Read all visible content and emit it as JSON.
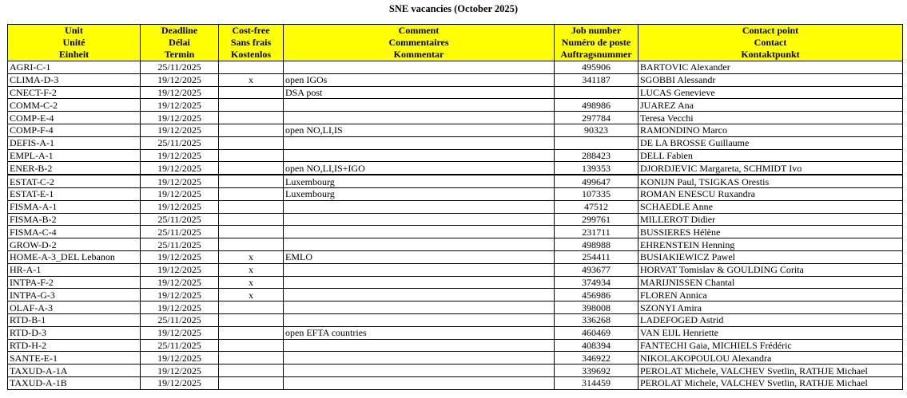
{
  "title": "SNE vacancies (October 2025)",
  "columns": [
    {
      "lines": [
        "Unit",
        "Unité",
        "Einheit"
      ]
    },
    {
      "lines": [
        "Deadline",
        "Délai",
        "Termin"
      ]
    },
    {
      "lines": [
        "Cost-free",
        "Sans frais",
        "Kostenlos"
      ]
    },
    {
      "lines": [
        "Comment",
        "Commentaires",
        "Kommentar"
      ]
    },
    {
      "lines": [
        "Job number",
        "Numéro de poste",
        "Auftragsnummer"
      ]
    },
    {
      "lines": [
        "Contact point",
        "Contact",
        "Kontaktpunkt"
      ]
    }
  ],
  "header_color": "#ffff00",
  "rows": [
    {
      "unit": "AGRI-C-1",
      "deadline": "25/11/2025",
      "cost_free": "",
      "comment": "",
      "job_number": "495906",
      "contact": "BARTOVIC Alexander"
    },
    {
      "unit": "CLIMA-D-3",
      "deadline": "19/12/2025",
      "cost_free": "x",
      "comment": "open IGOs",
      "job_number": "341187",
      "contact": "SGOBBI Alessandr"
    },
    {
      "unit": "CNECT-F-2",
      "deadline": "19/12/2025",
      "cost_free": "",
      "comment": "DSA post",
      "job_number": "",
      "contact": "LUCAS Genevieve"
    },
    {
      "unit": "COMM-C-2",
      "deadline": "19/12/2025",
      "cost_free": "",
      "comment": "",
      "job_number": "498986",
      "contact": "JUAREZ Ana"
    },
    {
      "unit": "COMP-E-4",
      "deadline": "19/12/2025",
      "cost_free": "",
      "comment": "",
      "job_number": "297784",
      "contact": "Teresa Vecchi"
    },
    {
      "unit": "COMP-F-4",
      "deadline": "19/12/2025",
      "cost_free": "",
      "comment": "open NO,LI,IS",
      "job_number": "90323",
      "contact": "RAMONDINO Marco"
    },
    {
      "unit": "DEFIS-A-1",
      "deadline": "25/11/2025",
      "cost_free": "",
      "comment": "",
      "job_number": "",
      "contact": "DE LA BROSSE Guillaume"
    },
    {
      "unit": "EMPL-A-1",
      "deadline": "19/12/2025",
      "cost_free": "",
      "comment": "",
      "job_number": "288423",
      "contact": "DELL Fabien"
    },
    {
      "unit": "ENER-B-2",
      "deadline": "19/12/2025",
      "cost_free": "",
      "comment": "open NO,LI,IS+IGO",
      "job_number": "139353",
      "contact": "DJORDJEVIC Margareta, SCHMIDT Ivo"
    },
    {
      "unit": "ESTAT-C-2",
      "deadline": "19/12/2025",
      "cost_free": "",
      "comment": "Luxembourg",
      "job_number": "499647",
      "contact": "KONIJN Paul, TSIGKAS Orestis"
    },
    {
      "unit": "ESTAT-E-1",
      "deadline": "19/12/2025",
      "cost_free": "",
      "comment": "Luxembourg",
      "job_number": "107335",
      "contact": "ROMAN ENESCU Ruxandra"
    },
    {
      "unit": "FISMA-A-1",
      "deadline": "19/12/2025",
      "cost_free": "",
      "comment": "",
      "job_number": "47512",
      "contact": "SCHAEDLE Anne"
    },
    {
      "unit": "FISMA-B-2",
      "deadline": "25/11/2025",
      "cost_free": "",
      "comment": "",
      "job_number": "299761",
      "contact": "MILLEROT Didier"
    },
    {
      "unit": "FISMA-C-4",
      "deadline": "25/11/2025",
      "cost_free": "",
      "comment": "",
      "job_number": "231711",
      "contact": "BUSSIERES Hélène"
    },
    {
      "unit": "GROW-D-2",
      "deadline": "25/11/2025",
      "cost_free": "",
      "comment": "",
      "job_number": "498988",
      "contact": "EHRENSTEIN Henning"
    },
    {
      "unit": "HOME-A-3_DEL Lebanon",
      "deadline": "19/12/2025",
      "cost_free": "x",
      "comment": "EMLO",
      "job_number": "254411",
      "contact": "BUSIAKIEWICZ Pawel"
    },
    {
      "unit": "HR-A-1",
      "deadline": "19/12/2025",
      "cost_free": "x",
      "comment": "",
      "job_number": "493677",
      "contact": "HORVAT Tomislav & GOULDING Corita"
    },
    {
      "unit": "INTPA-F-2",
      "deadline": "19/12/2025",
      "cost_free": "x",
      "comment": "",
      "job_number": "374934",
      "contact": "MARIJNISSEN Chantal"
    },
    {
      "unit": "INTPA-G-3",
      "deadline": "19/12/2025",
      "cost_free": "x",
      "comment": "",
      "job_number": "456986",
      "contact": "FLOREN Annica"
    },
    {
      "unit": "OLAF-A-3",
      "deadline": "19/12/2025",
      "cost_free": "",
      "comment": "",
      "job_number": "398008",
      "contact": "SZONYI Amira"
    },
    {
      "unit": "RTD-B-1",
      "deadline": "25/11/2025",
      "cost_free": "",
      "comment": "",
      "job_number": "336268",
      "contact": "LADEFOGED Astrid"
    },
    {
      "unit": "RTD-D-3",
      "deadline": "19/12/2025",
      "cost_free": "",
      "comment": "open EFTA countries",
      "job_number": "460469",
      "contact": "VAN EIJL Henriette"
    },
    {
      "unit": "RTD-H-2",
      "deadline": "25/11/2025",
      "cost_free": "",
      "comment": "",
      "job_number": "408394",
      "contact": "FANTECHI Gaia, MICHIELS Frédéric"
    },
    {
      "unit": "SANTE-E-1",
      "deadline": "19/12/2025",
      "cost_free": "",
      "comment": "",
      "job_number": "346922",
      "contact": "NIKOLAKOPOULOU Alexandra"
    },
    {
      "unit": "TAXUD-A-1A",
      "deadline": "19/12/2025",
      "cost_free": "",
      "comment": "",
      "job_number": "339692",
      "contact": "PEROLAT Michele, VALCHEV Svetlin, RATHJE Michael"
    },
    {
      "unit": "TAXUD-A-1B",
      "deadline": "19/12/2025",
      "cost_free": "",
      "comment": "",
      "job_number": "314459",
      "contact": "PEROLAT Michele, VALCHEV Svetlin, RATHJE Michael"
    }
  ]
}
